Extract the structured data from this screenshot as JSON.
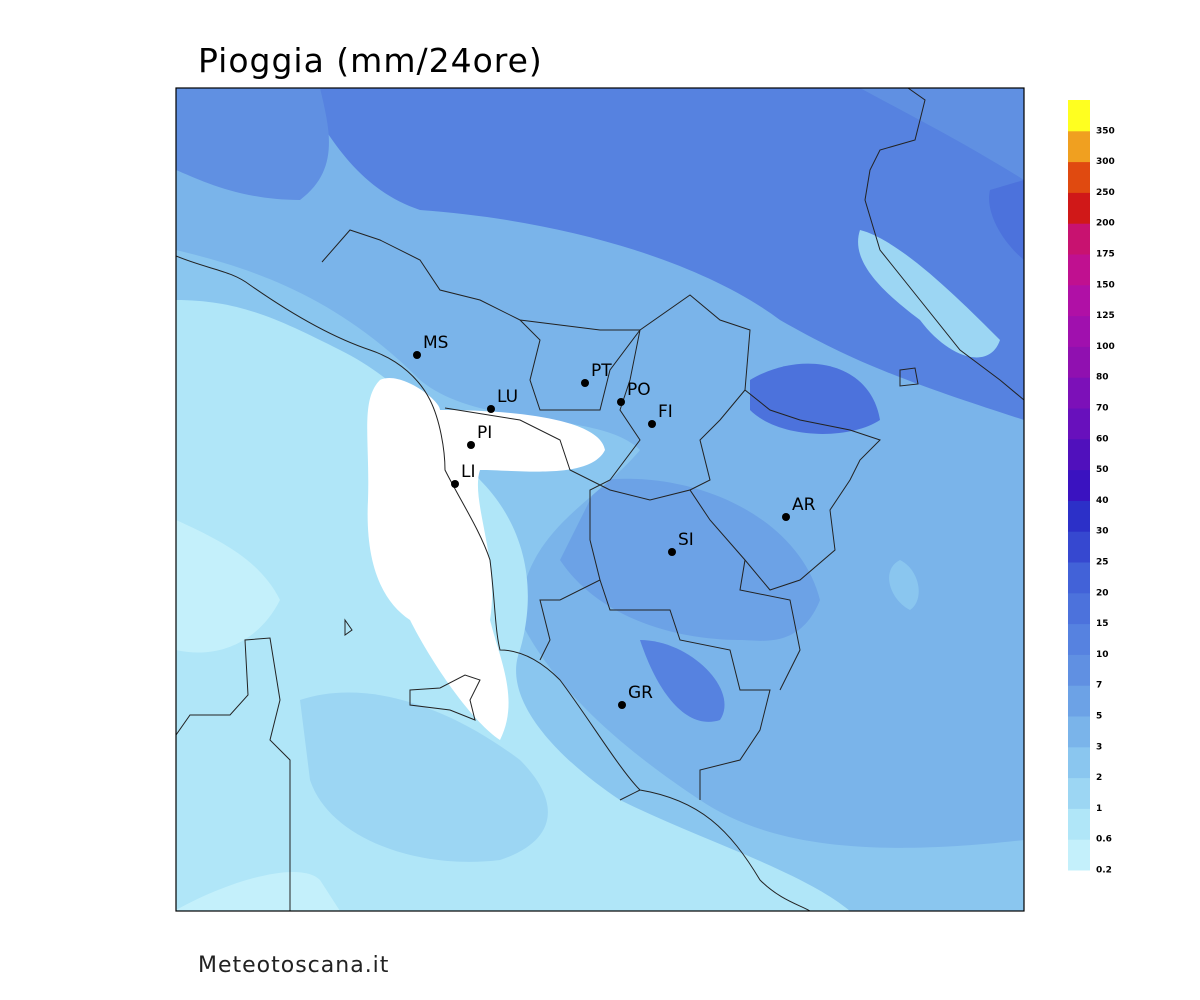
{
  "title": "Pioggia (mm/24ore)",
  "cities": [
    "MS",
    "LU",
    "PT",
    "PO",
    "FI",
    "PI",
    "LI",
    "SI",
    "AR",
    "GR"
  ],
  "legend": {
    "levels": [
      0.2,
      0.6,
      1,
      2,
      3,
      5,
      7,
      10,
      15,
      20,
      25,
      30,
      40,
      50,
      60,
      70,
      80,
      100,
      125,
      150,
      175,
      200,
      250,
      300,
      350
    ],
    "colors": [
      "#c4f0fb",
      "#b0e6f8",
      "#9cd6f3",
      "#8ac6ef",
      "#7ab4ea",
      "#6ca2e6",
      "#6090e2",
      "#5682e0",
      "#4c72dc",
      "#4262d8",
      "#3648d0",
      "#2c30c8",
      "#3a12c0",
      "#5010bc",
      "#6810bc",
      "#7c10b8",
      "#9010b0",
      "#a010ae",
      "#b010a6",
      "#c01090",
      "#c81270",
      "#d01818",
      "#e04a10",
      "#f0a020",
      "#ffff20"
    ]
  },
  "footer": "Meteotoscana.it"
}
